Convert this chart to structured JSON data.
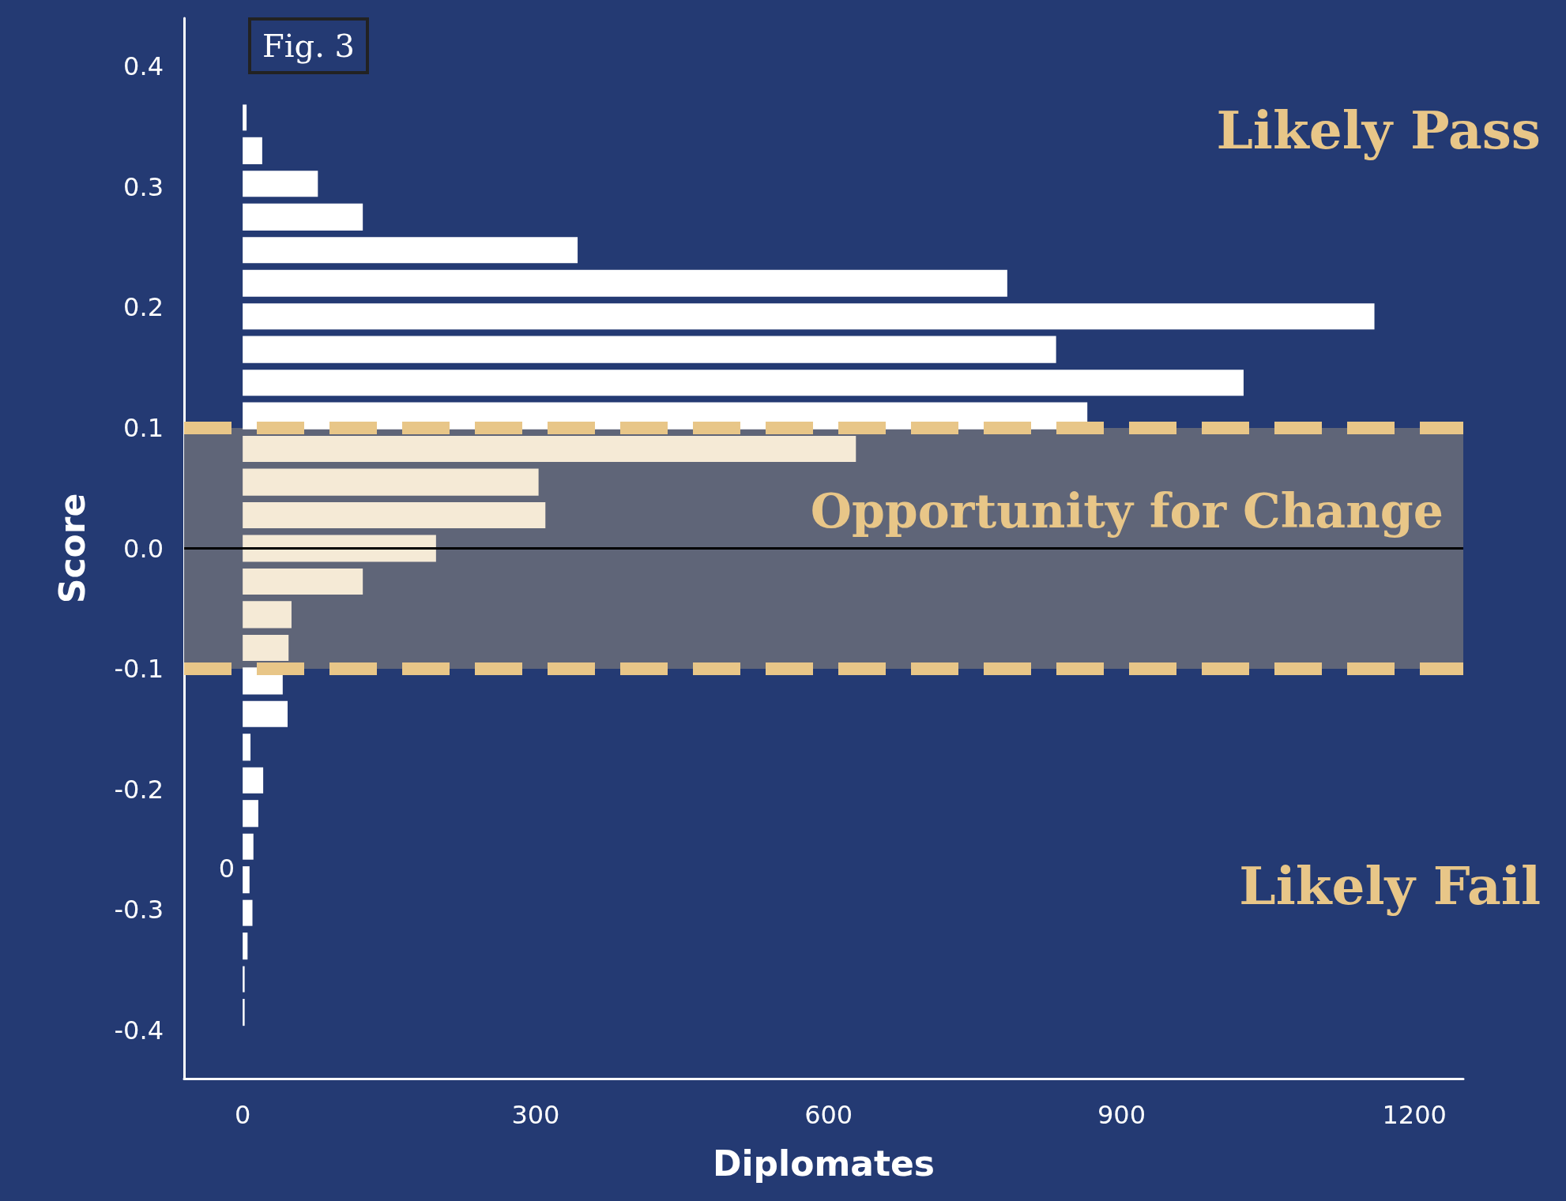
{
  "chart_data": {
    "type": "histogram",
    "orientation": "horizontal",
    "title": "Fig. 3",
    "xlabel": "Diplomates",
    "ylabel": "Score",
    "bins": [
      -0.399,
      -0.371,
      -0.344,
      -0.316,
      -0.289,
      -0.261,
      -0.234,
      -0.206,
      -0.179,
      -0.151,
      -0.124,
      -0.096,
      -0.069,
      -0.041,
      -0.014,
      0.014,
      0.041,
      0.069,
      0.096,
      0.124,
      0.151,
      0.179,
      0.206,
      0.234,
      0.261,
      0.289,
      0.316,
      0.344,
      0.371
    ],
    "values": [
      2,
      2,
      5,
      10,
      7,
      11,
      16,
      21,
      8,
      46,
      41,
      47,
      50,
      123,
      198,
      310,
      303,
      628,
      865,
      1025,
      833,
      1159,
      783,
      343,
      123,
      77,
      20,
      4
    ],
    "colors": [
      "#ffffff",
      "#ffffff",
      "#ffffff",
      "#ffffff",
      "#ffffff",
      "#ffffff",
      "#ffffff",
      "#ffffff",
      "#ffffff",
      "#ffffff",
      "#ffffff",
      "#f5ead6",
      "#f5ead6",
      "#f5ead6",
      "#f5ead6",
      "#f5ead6",
      "#f5ead6",
      "#f5ead6",
      "#ffffff",
      "#ffffff",
      "#ffffff",
      "#ffffff",
      "#ffffff",
      "#ffffff",
      "#ffffff",
      "#ffffff",
      "#ffffff",
      "#ffffff"
    ],
    "xlim": [
      -60,
      1250
    ],
    "xticks": [
      0,
      300,
      600,
      900,
      1200
    ],
    "ylim": [
      -0.44,
      0.44
    ],
    "yticks": [
      -0.4,
      -0.3,
      -0.2,
      -0.1,
      {
        "value": 0,
        "label": "0.0"
      },
      0.1,
      0.2,
      0.3,
      0.4
    ],
    "grid": false,
    "bands": [
      {
        "axis": "y",
        "from": -0.1,
        "to": 0.1,
        "label": "Opportunity for Change",
        "color": "#5f6578"
      }
    ],
    "ref_lines": [
      {
        "axis": "y",
        "value": 0,
        "color": "#000000",
        "line_style": "solid"
      },
      {
        "axis": "y",
        "value": 0.1,
        "color": "#e8c688",
        "line_style": "dashed"
      },
      {
        "axis": "y",
        "value": -0.1,
        "color": "#e8c688",
        "line_style": "dashed"
      }
    ],
    "annotations": [
      "Likely Pass",
      "Likely Fail",
      "0"
    ]
  }
}
